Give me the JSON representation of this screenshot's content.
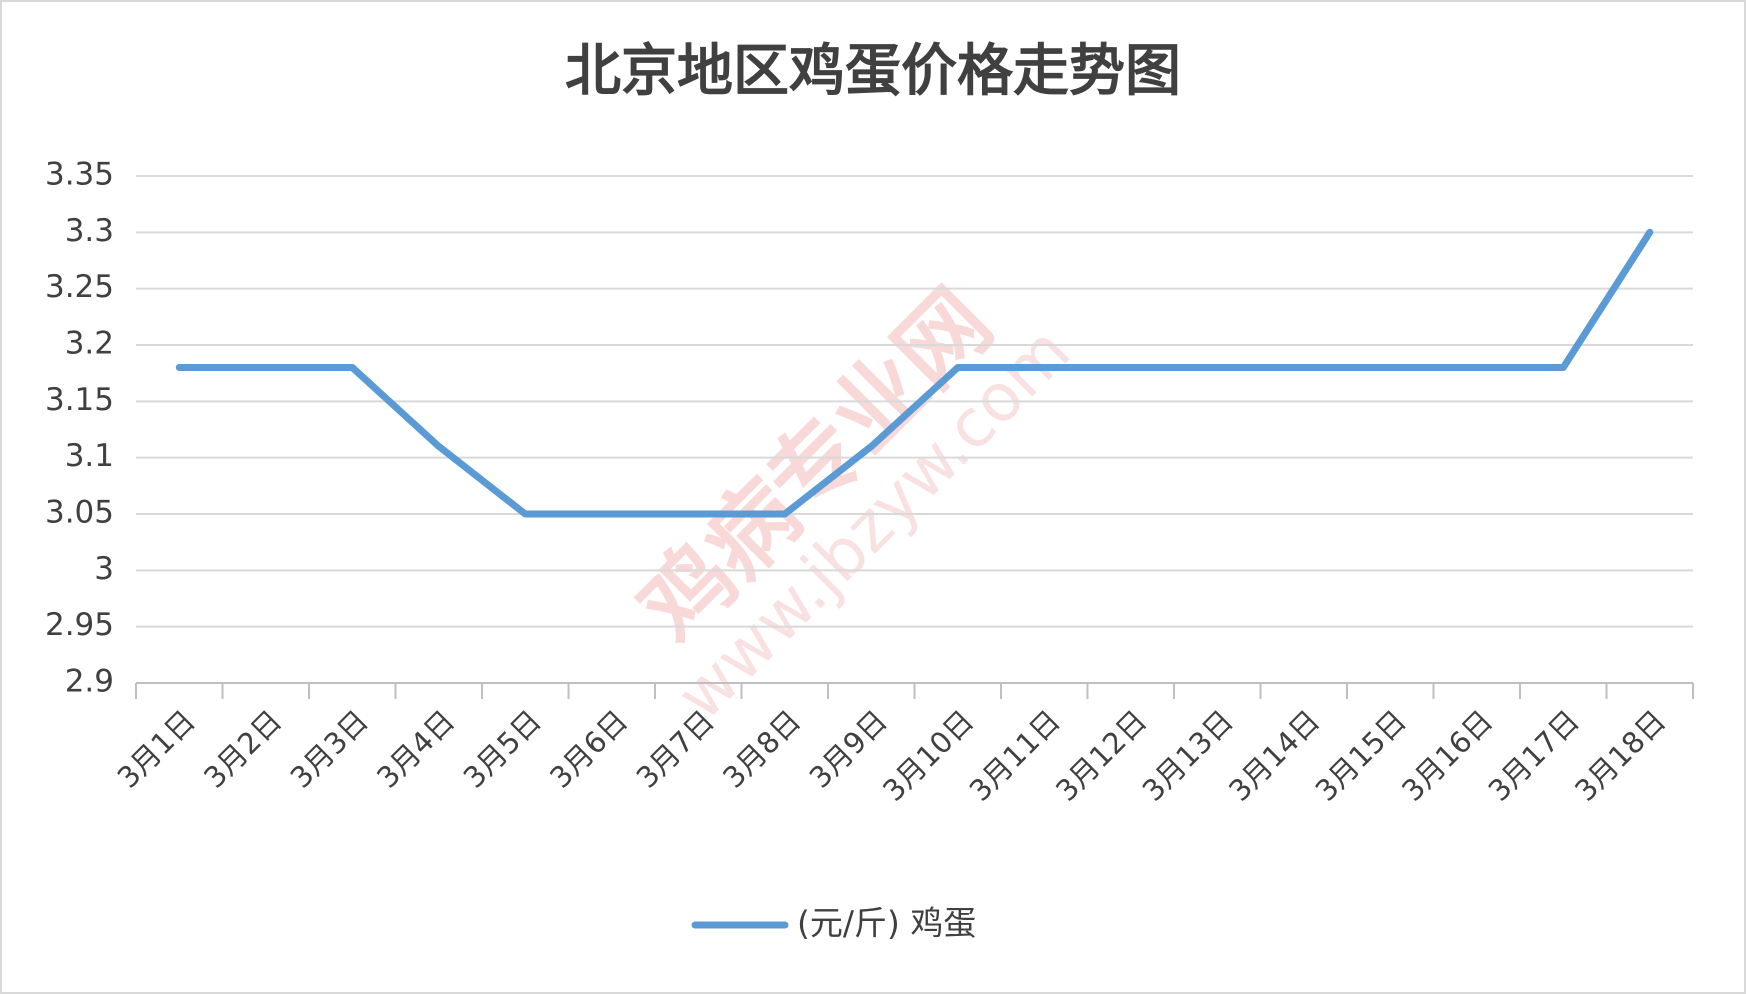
{
  "chart_data": {
    "type": "line",
    "title": "北京地区鸡蛋价格走势图",
    "categories": [
      "3月1日",
      "3月2日",
      "3月3日",
      "3月4日",
      "3月5日",
      "3月6日",
      "3月7日",
      "3月8日",
      "3月9日",
      "3月10日",
      "3月11日",
      "3月12日",
      "3月13日",
      "3月14日",
      "3月15日",
      "3月16日",
      "3月17日",
      "3月18日"
    ],
    "series": [
      {
        "name": "(元/斤) 鸡蛋",
        "color": "#5b9bd5",
        "values": [
          3.18,
          3.18,
          3.18,
          3.11,
          3.05,
          3.05,
          3.05,
          3.05,
          3.11,
          3.18,
          3.18,
          3.18,
          3.18,
          3.18,
          3.18,
          3.18,
          3.18,
          3.3
        ]
      }
    ],
    "ylim": [
      2.9,
      3.35
    ],
    "yticks": [
      2.9,
      2.95,
      3,
      3.05,
      3.1,
      3.15,
      3.2,
      3.25,
      3.3,
      3.35
    ],
    "grid": true,
    "legend": "bottom",
    "watermark": [
      "鸡病专业网",
      "www.jbzyw.com"
    ]
  }
}
